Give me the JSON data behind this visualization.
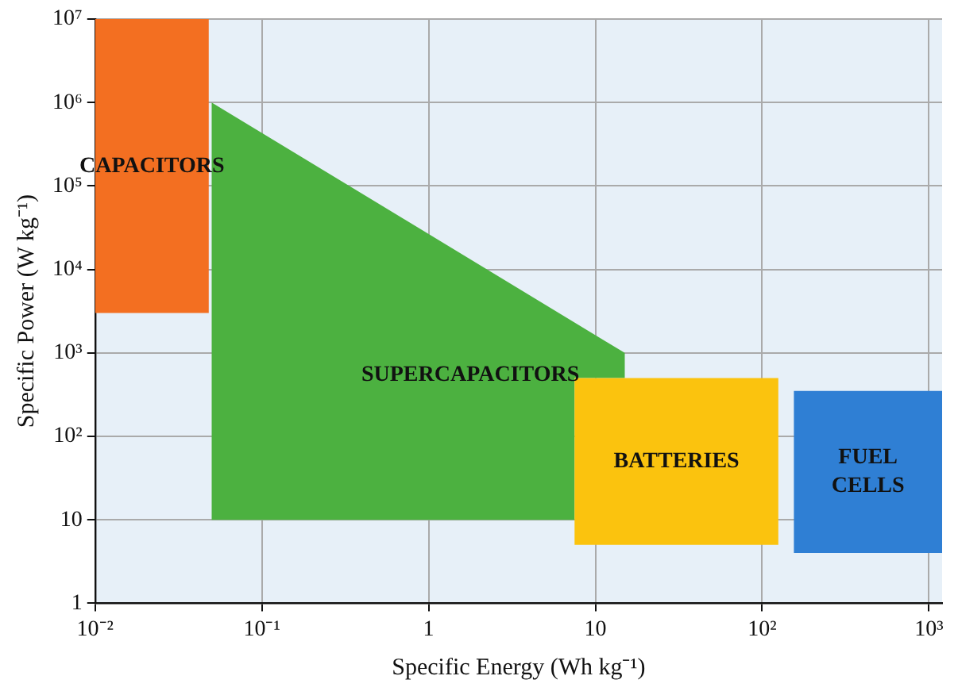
{
  "chart_data": {
    "type": "area",
    "xlabel": "Specific Energy (Wh kg⁻¹)",
    "ylabel": "Specific Power (W kg⁻¹)",
    "log": "xy",
    "grid": true,
    "legend": false,
    "xlim": [
      0.01,
      1200
    ],
    "ylim": [
      1,
      10000000
    ],
    "xticks": [
      {
        "value": 0.01,
        "label": "10⁻²"
      },
      {
        "value": 0.1,
        "label": "10⁻¹"
      },
      1,
      10,
      {
        "value": 100,
        "label": "10²"
      },
      {
        "value": 1000,
        "label": "10³"
      }
    ],
    "yticks": [
      1,
      10,
      {
        "value": 100,
        "label": "10²"
      },
      {
        "value": 1000,
        "label": "10³"
      },
      {
        "value": 10000,
        "label": "10⁴"
      },
      {
        "value": 100000,
        "label": "10⁵"
      },
      {
        "value": 1000000,
        "label": "10⁶"
      },
      {
        "value": 10000000,
        "label": "10⁷"
      }
    ],
    "series": [
      {
        "name": "CAPACITORS",
        "color": "#f36f21",
        "x": [
          0.01,
          0.048,
          0.048,
          0.01
        ],
        "values": [
          10000000,
          10000000,
          3000,
          3000
        ]
      },
      {
        "name": "SUPERCAPACITORS",
        "color": "#4cb140",
        "x": [
          0.05,
          15,
          15,
          7.5,
          7.5,
          0.05
        ],
        "values": [
          1000000,
          1000,
          500,
          500,
          10,
          10
        ]
      },
      {
        "name": "BATTERIES",
        "color": "#fbc30e",
        "x": [
          7.5,
          125,
          125,
          7.5
        ],
        "values": [
          500,
          500,
          5,
          5
        ]
      },
      {
        "name": "FUEL CELLS",
        "color": "#2f7fd4",
        "x": [
          155,
          1200,
          1200,
          155
        ],
        "values": [
          350,
          350,
          4,
          4
        ]
      }
    ]
  }
}
